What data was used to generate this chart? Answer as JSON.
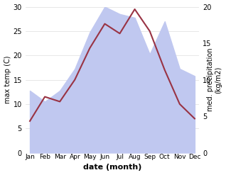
{
  "months": [
    "Jan",
    "Feb",
    "Mar",
    "Apr",
    "May",
    "Jun",
    "Jul",
    "Aug",
    "Sep",
    "Oct",
    "Nov",
    "Dec"
  ],
  "temp": [
    6.5,
    11.5,
    10.5,
    15.0,
    21.5,
    26.5,
    24.5,
    29.5,
    25.0,
    17.0,
    10.0,
    7.0
  ],
  "precip_kg": [
    8.5,
    7.0,
    8.5,
    11.5,
    16.5,
    20.0,
    19.0,
    18.5,
    13.5,
    18.0,
    11.5,
    10.5
  ],
  "temp_color": "#993344",
  "precip_color": "#c0c8f0",
  "temp_ylim": [
    0,
    30
  ],
  "precip_scale": 1.5,
  "temp_yticks": [
    0,
    5,
    10,
    15,
    20,
    25,
    30
  ],
  "precip_yticks_kg": [
    0,
    5,
    10,
    15,
    20
  ],
  "xlabel": "date (month)",
  "ylabel_left": "max temp (C)",
  "ylabel_right": "med. precipitation\n(kg/m2)",
  "background_color": "#ffffff",
  "grid_color": "#dddddd"
}
